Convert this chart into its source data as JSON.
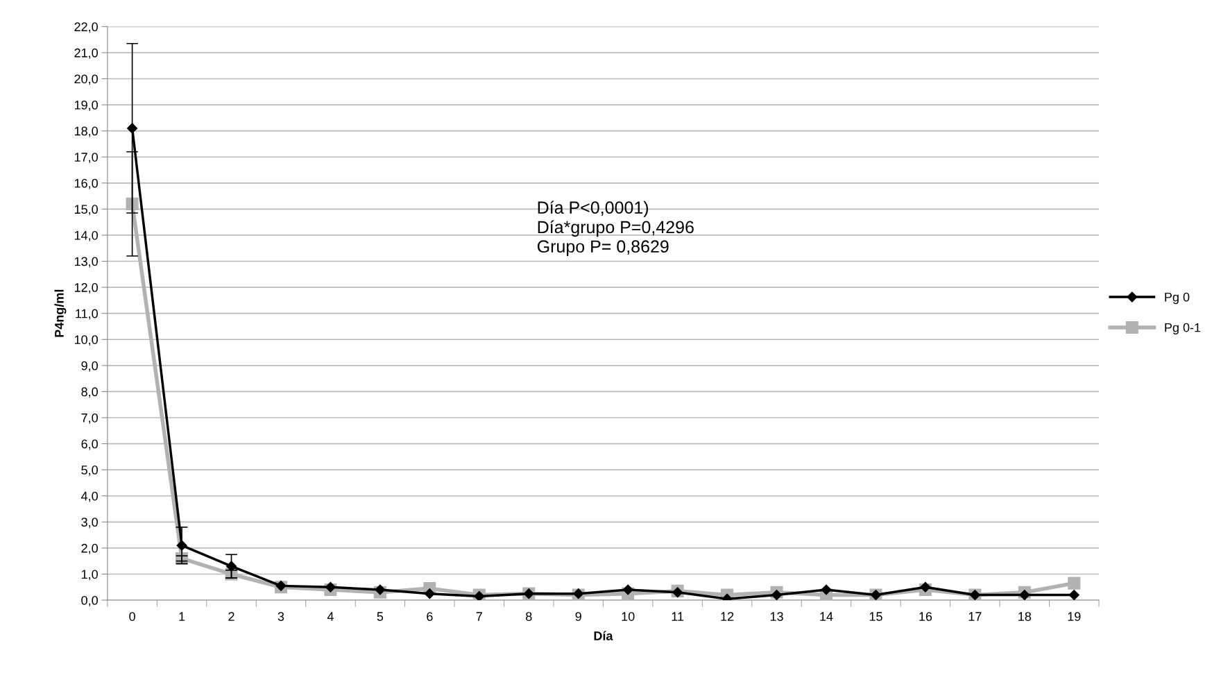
{
  "chart_data": {
    "type": "line",
    "xlabel": "Día",
    "ylabel": "P4ng/ml",
    "categories": [
      "0",
      "1",
      "2",
      "3",
      "4",
      "5",
      "6",
      "7",
      "8",
      "9",
      "10",
      "11",
      "12",
      "13",
      "14",
      "15",
      "16",
      "17",
      "18",
      "19"
    ],
    "series": [
      {
        "name": "Pg 0",
        "color": "#000000",
        "marker": "diamond",
        "values": [
          18.1,
          2.1,
          1.3,
          0.55,
          0.5,
          0.4,
          0.25,
          0.15,
          0.25,
          0.25,
          0.4,
          0.3,
          0.05,
          0.2,
          0.4,
          0.2,
          0.5,
          0.2,
          0.2,
          0.2
        ],
        "errors": [
          3.25,
          0.7,
          0.45,
          null,
          null,
          null,
          null,
          null,
          null,
          null,
          null,
          null,
          null,
          null,
          null,
          null,
          null,
          null,
          null,
          null
        ]
      },
      {
        "name": "Pg 0-1",
        "color": "#b2b2b2",
        "marker": "square",
        "values": [
          15.2,
          1.6,
          1.0,
          0.5,
          0.4,
          0.3,
          0.45,
          0.2,
          0.25,
          0.2,
          0.25,
          0.35,
          0.2,
          0.3,
          0.2,
          0.2,
          0.4,
          0.2,
          0.3,
          0.65
        ],
        "errors": [
          2.0,
          0.1,
          0.15,
          null,
          null,
          null,
          null,
          null,
          null,
          null,
          null,
          null,
          null,
          null,
          null,
          null,
          null,
          null,
          null,
          null
        ]
      }
    ],
    "ylim": [
      0,
      22
    ],
    "yticks": [
      {
        "value": 0,
        "label": "0,0"
      },
      {
        "value": 1,
        "label": "1,0"
      },
      {
        "value": 2,
        "label": "2,0"
      },
      {
        "value": 3,
        "label": "3,0"
      },
      {
        "value": 4,
        "label": "4,0"
      },
      {
        "value": 5,
        "label": "5,0"
      },
      {
        "value": 6,
        "label": "6,0"
      },
      {
        "value": 7,
        "label": "7,0"
      },
      {
        "value": 8,
        "label": "8,0"
      },
      {
        "value": 9,
        "label": "9,0"
      },
      {
        "value": 10,
        "label": "10,0"
      },
      {
        "value": 11,
        "label": "11,0"
      },
      {
        "value": 12,
        "label": "12,0"
      },
      {
        "value": 13,
        "label": "13,0"
      },
      {
        "value": 14,
        "label": "14,0"
      },
      {
        "value": 15,
        "label": "15,0"
      },
      {
        "value": 16,
        "label": "16,0"
      },
      {
        "value": 17,
        "label": "17,0"
      },
      {
        "value": 18,
        "label": "18,0"
      },
      {
        "value": 19,
        "label": "19,0"
      },
      {
        "value": 20,
        "label": "20,0"
      },
      {
        "value": 21,
        "label": "21,0"
      },
      {
        "value": 22,
        "label": "22,0"
      }
    ],
    "grid": "y",
    "legend": "right",
    "line_style": "solid",
    "annotations": [
      "Día P<0,0001)\nDía*grupo P=0,4296\nGrupo P= 0,8629"
    ]
  }
}
